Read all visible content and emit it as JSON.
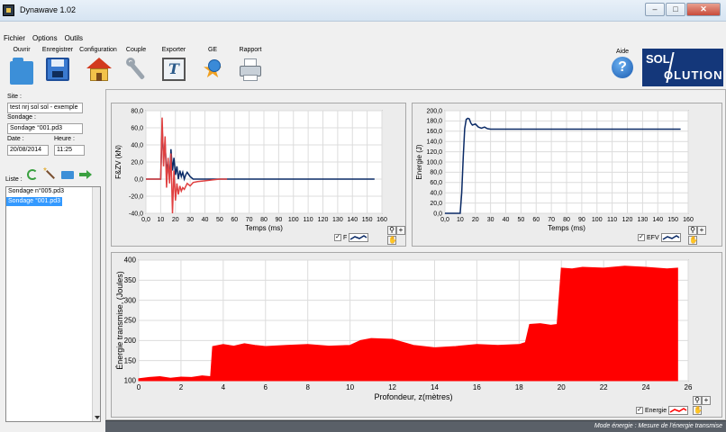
{
  "window": {
    "title": "Dynawave 1.02"
  },
  "menu": [
    "Fichier",
    "Options",
    "Outils"
  ],
  "toolbar": {
    "open": "Ouvrir",
    "save": "Enregistrer",
    "config": "Configuration",
    "couple": "Couple",
    "export": "Exporter",
    "ge": "GE",
    "report": "Rapport",
    "help": "Aide"
  },
  "logo": {
    "line1": "SOL",
    "line2": "OLUTION"
  },
  "sidebar": {
    "site_label": "Site :",
    "site_value": "test nrj sol sol - exemple",
    "sondage_label": "Sondage :",
    "sondage_value": "Sondage °001.pd3",
    "date_label": "Date :",
    "date_value": "20/08/2014",
    "heure_label": "Heure :",
    "heure_value": "11:25",
    "liste_label": "Liste :",
    "items": [
      {
        "label": "Sondage n°005.pd3",
        "selected": false
      },
      {
        "label": "Sondage °001.pd3",
        "selected": true
      }
    ]
  },
  "status": {
    "message": "Mode énergie : Mesure de l'énergie transmise"
  },
  "chart_data": [
    {
      "id": "force",
      "type": "line",
      "xlabel": "Temps (ms)",
      "ylabel": "F&ZV (kN)",
      "xlim": [
        0,
        160
      ],
      "ylim": [
        -40,
        80
      ],
      "xticks": [
        "0,0",
        "10",
        "20",
        "30",
        "40",
        "50",
        "60",
        "70",
        "80",
        "90",
        "100",
        "110",
        "120",
        "130",
        "140",
        "150",
        "160"
      ],
      "yticks": [
        "-40,0",
        "-20,0",
        "0,0",
        "20,0",
        "40,0",
        "60,0",
        "80,0"
      ],
      "grid": true,
      "legend": {
        "label": "F"
      },
      "series": [
        {
          "name": "F",
          "color": "#0a2a66",
          "x": [
            0,
            10,
            11,
            12,
            13,
            14,
            15,
            16,
            17,
            18,
            19,
            20,
            21,
            22,
            23,
            24,
            25,
            26,
            27,
            28,
            30,
            32,
            35,
            40,
            60,
            155
          ],
          "y": [
            0,
            0,
            60,
            25,
            40,
            10,
            20,
            0,
            35,
            10,
            25,
            5,
            15,
            0,
            10,
            3,
            8,
            0,
            5,
            8,
            3,
            0,
            0,
            0,
            0,
            0
          ]
        },
        {
          "color": "#e04040",
          "x": [
            0,
            10,
            11,
            12,
            13,
            14,
            15,
            16,
            17,
            18,
            19,
            20,
            21,
            22,
            23,
            24,
            25,
            26,
            28,
            30,
            32,
            35,
            40,
            45,
            50,
            55
          ],
          "y": [
            0,
            0,
            72,
            15,
            50,
            -10,
            25,
            -5,
            30,
            -40,
            10,
            -25,
            -5,
            -18,
            -8,
            -14,
            -10,
            -12,
            -5,
            -8,
            -4,
            -3,
            -2,
            -1,
            0,
            0
          ]
        }
      ]
    },
    {
      "id": "energy",
      "type": "line",
      "xlabel": "Temps (ms)",
      "ylabel": "Energie (J)",
      "xlim": [
        0,
        160
      ],
      "ylim": [
        0,
        200
      ],
      "xticks": [
        "0,0",
        "10",
        "20",
        "30",
        "40",
        "50",
        "60",
        "70",
        "80",
        "90",
        "100",
        "110",
        "120",
        "130",
        "140",
        "150",
        "160"
      ],
      "yticks": [
        "0,0",
        "20,0",
        "40,0",
        "60,0",
        "80,0",
        "100,0",
        "120,0",
        "140,0",
        "160,0",
        "180,0",
        "200,0"
      ],
      "grid": true,
      "legend": {
        "label": "EFV"
      },
      "series": [
        {
          "name": "EFV",
          "color": "#0a2a66",
          "x": [
            0,
            10,
            11,
            12,
            13,
            14,
            15,
            16,
            17,
            18,
            20,
            22,
            24,
            26,
            28,
            30,
            40,
            155
          ],
          "y": [
            0,
            0,
            40,
            110,
            165,
            183,
            185,
            184,
            176,
            172,
            174,
            168,
            166,
            168,
            165,
            164,
            164,
            164
          ]
        }
      ]
    },
    {
      "id": "transmitted",
      "type": "area",
      "xlabel": "Profondeur, z(mètres)",
      "ylabel": "Énergie transmise, (Joules)",
      "xlim": [
        0,
        26
      ],
      "ylim": [
        100,
        400
      ],
      "xticks": [
        "0",
        "2",
        "4",
        "6",
        "8",
        "10",
        "12",
        "14",
        "16",
        "18",
        "20",
        "22",
        "24",
        "26"
      ],
      "yticks": [
        "100",
        "150",
        "200",
        "250",
        "300",
        "350",
        "400"
      ],
      "grid": true,
      "legend": {
        "label": "Energie"
      },
      "series": [
        {
          "name": "Energie",
          "color": "#ff0000",
          "x": [
            0,
            0.5,
            1,
            1.5,
            2,
            2.5,
            3,
            3.4,
            3.5,
            4,
            4.5,
            5,
            5.5,
            6,
            7,
            8,
            9,
            10,
            10.5,
            11,
            12,
            13,
            14,
            15,
            16,
            17,
            18,
            18.3,
            18.5,
            19,
            19.5,
            19.8,
            20,
            20.5,
            21,
            22,
            23,
            24,
            25,
            25.5
          ],
          "y": [
            105,
            108,
            110,
            106,
            109,
            108,
            112,
            110,
            185,
            190,
            186,
            192,
            188,
            185,
            188,
            190,
            186,
            188,
            200,
            205,
            203,
            188,
            182,
            185,
            190,
            188,
            190,
            195,
            240,
            242,
            238,
            240,
            380,
            378,
            382,
            380,
            385,
            382,
            378,
            380
          ]
        }
      ]
    }
  ]
}
